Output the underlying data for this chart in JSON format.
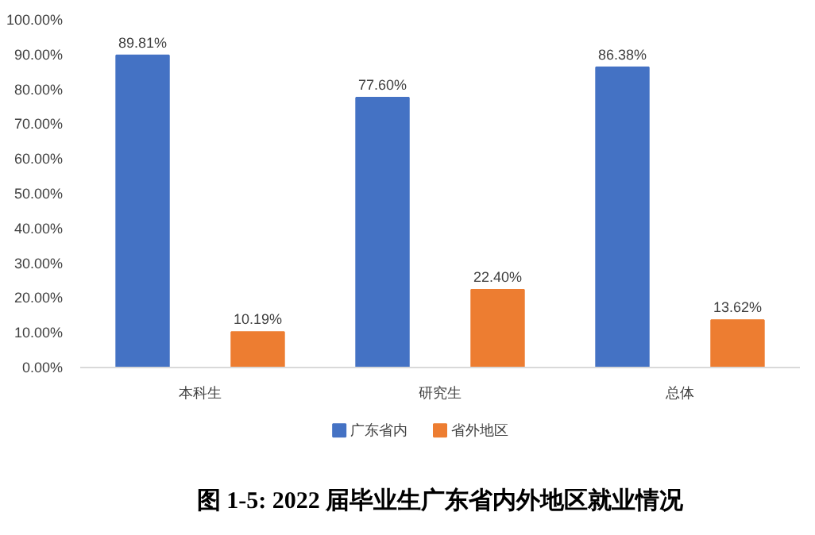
{
  "chart_data": {
    "type": "bar",
    "title": "图 1-5: 2022 届毕业生广东省内外地区就业情况",
    "categories": [
      "本科生",
      "研究生",
      "总体"
    ],
    "series": [
      {
        "name": "广东省内",
        "color": "#4472c4",
        "values": [
          89.81,
          77.6,
          86.38
        ],
        "value_labels": [
          "89.81%",
          "77.60%",
          "86.38%"
        ]
      },
      {
        "name": "省外地区",
        "color": "#ed7d31",
        "values": [
          10.19,
          22.4,
          13.62
        ],
        "value_labels": [
          "10.19%",
          "22.40%",
          "13.62%"
        ]
      }
    ],
    "ylim": [
      0,
      100
    ],
    "yticks": [
      {
        "value": 0,
        "label": "0.00%"
      },
      {
        "value": 10,
        "label": "10.00%"
      },
      {
        "value": 20,
        "label": "20.00%"
      },
      {
        "value": 30,
        "label": "30.00%"
      },
      {
        "value": 40,
        "label": "40.00%"
      },
      {
        "value": 50,
        "label": "50.00%"
      },
      {
        "value": 60,
        "label": "60.00%"
      },
      {
        "value": 70,
        "label": "70.00%"
      },
      {
        "value": 80,
        "label": "80.00%"
      },
      {
        "value": 90,
        "label": "90.00%"
      },
      {
        "value": 100,
        "label": "100.00%"
      }
    ],
    "grid": false,
    "legend": "bottom"
  }
}
